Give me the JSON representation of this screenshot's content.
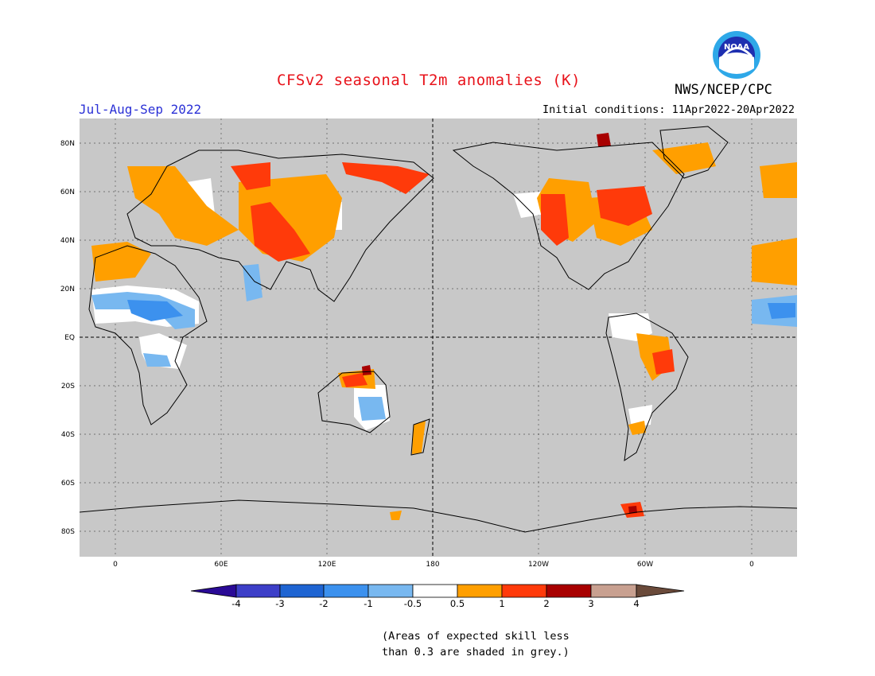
{
  "header": {
    "title": "CFSv2 seasonal T2m anomalies (K)",
    "season": "Jul-Aug-Sep 2022",
    "initial_conditions": "Initial conditions: 11Apr2022-20Apr2022",
    "organization": "NWS/NCEP/CPC",
    "logo_text": "NOAA"
  },
  "map": {
    "background_color": "#c8c8c8",
    "y_ticks": [
      "80N",
      "60N",
      "40N",
      "20N",
      "EQ",
      "20S",
      "40S",
      "60S",
      "80S"
    ],
    "x_ticks": [
      "0",
      "60E",
      "120E",
      "180",
      "120W",
      "60W",
      "0"
    ]
  },
  "colorbar": {
    "labels": [
      "-4",
      "-3",
      "-2",
      "-1",
      "-0.5",
      "0.5",
      "1",
      "2",
      "3",
      "4"
    ],
    "colors": [
      "#2a0a96",
      "#3d3fc8",
      "#1e64d2",
      "#3c91ee",
      "#78b8f0",
      "#ffffff",
      "#ff9f00",
      "#ff3a0a",
      "#a80000",
      "#c8a090",
      "#6a4a3a"
    ]
  },
  "note": {
    "line1": "(Areas of expected skill less",
    "line2": "than 0.3 are shaded in grey.)"
  }
}
